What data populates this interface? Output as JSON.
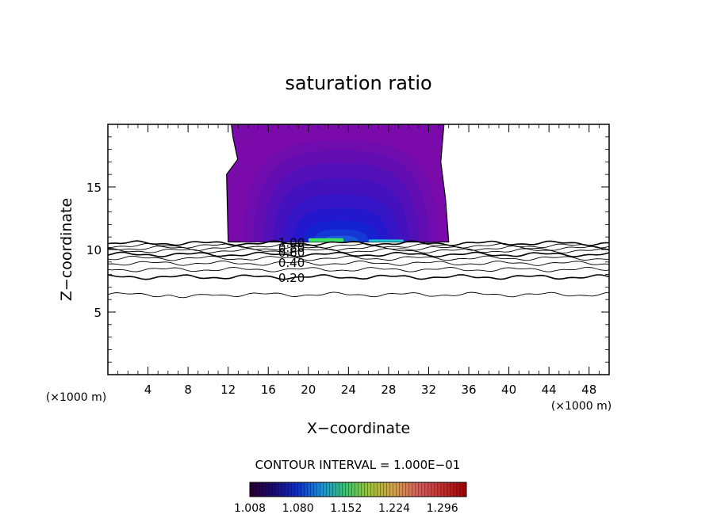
{
  "chart_data": {
    "type": "contour",
    "title": "saturation ratio",
    "xlabel": "X−coordinate",
    "ylabel": "Z−coordinate",
    "x_unit_left": "(×1000 m)",
    "x_unit_right": "(×1000 m)",
    "xlim": [
      0,
      50
    ],
    "ylim": [
      0,
      20
    ],
    "x_ticks": [
      4,
      8,
      12,
      16,
      20,
      24,
      28,
      32,
      36,
      40,
      44,
      48
    ],
    "y_ticks": [
      5,
      10,
      15
    ],
    "contour_labels": [
      {
        "text": "0.20",
        "x": 17.0,
        "z": 7.8
      },
      {
        "text": "0.40",
        "x": 17.0,
        "z": 9.0
      },
      {
        "text": "0.60",
        "x": 17.0,
        "z": 9.8
      },
      {
        "text": "0.80",
        "x": 17.0,
        "z": 10.2
      },
      {
        "text": "1.00",
        "x": 17.0,
        "z": 10.6
      }
    ],
    "contour_lines_z": [
      6.4,
      7.8,
      8.4,
      8.9,
      9.3,
      9.6,
      9.9,
      10.1,
      10.3,
      10.5
    ],
    "cloud_region": {
      "x_min": 12.0,
      "x_max": 34.0,
      "z_bottom": 10.6,
      "z_top": 20
    },
    "shading_bands": [
      {
        "x": [
          12.0,
          34.0
        ],
        "z": [
          10.6,
          20.0
        ],
        "color": "#7a0aaa"
      },
      {
        "x": [
          13.5,
          33.0
        ],
        "z": [
          10.6,
          18.7
        ],
        "color": "#6e0cae"
      },
      {
        "x": [
          14.5,
          32.0
        ],
        "z": [
          10.6,
          17.9
        ],
        "color": "#610db2"
      },
      {
        "x": [
          15.5,
          31.0
        ],
        "z": [
          10.6,
          16.9
        ],
        "color": "#5410b8"
      },
      {
        "x": [
          16.5,
          30.0
        ],
        "z": [
          10.6,
          15.7
        ],
        "color": "#4411be"
      },
      {
        "x": [
          17.5,
          29.0
        ],
        "z": [
          10.6,
          14.4
        ],
        "color": "#3515c6"
      },
      {
        "x": [
          18.5,
          28.0
        ],
        "z": [
          10.6,
          13.3
        ],
        "color": "#2418cc"
      },
      {
        "x": [
          19.5,
          27.0
        ],
        "z": [
          10.6,
          12.3
        ],
        "color": "#1522d0"
      },
      {
        "x": [
          20.5,
          26.0
        ],
        "z": [
          10.6,
          11.6
        ],
        "color": "#1438d6"
      },
      {
        "x": [
          21.5,
          25.0
        ],
        "z": [
          10.6,
          11.1
        ],
        "color": "#1a58dc"
      }
    ],
    "highlights": [
      {
        "x": [
          20.0,
          23.5
        ],
        "z": [
          10.6,
          10.9
        ],
        "color": "#3ee06a"
      },
      {
        "x": [
          26.0,
          29.5
        ],
        "z": [
          10.6,
          10.8
        ],
        "color": "#22c8d8"
      }
    ],
    "contour_interval_label": "CONTOUR INTERVAL = 1.000E−01",
    "colorbar": {
      "min": 1.008,
      "max": 1.332,
      "tick_values": [
        1.008,
        1.08,
        1.152,
        1.224,
        1.296
      ],
      "tick_labels": [
        "1.008",
        "1.080",
        "1.152",
        "1.224",
        "1.296"
      ],
      "colors": [
        "#2a0030",
        "#1a0a70",
        "#1030c0",
        "#2090d0",
        "#40c070",
        "#a0c040",
        "#d0a050",
        "#d06060",
        "#c03030",
        "#a00000"
      ]
    },
    "grid": false,
    "legend": "colorbar-bottom"
  }
}
